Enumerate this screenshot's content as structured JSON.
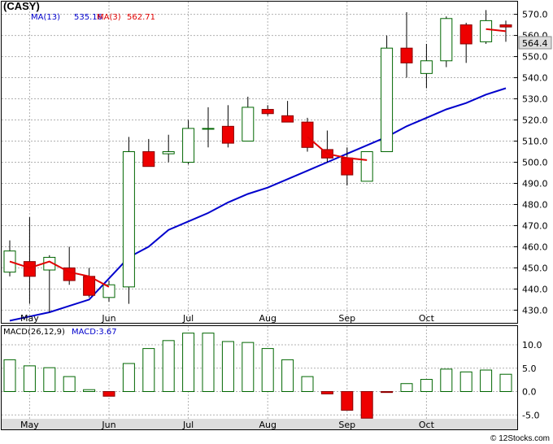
{
  "chart_data": {
    "type": "candlestick",
    "ticker": "(CASY)",
    "legend": [
      {
        "label": "MA(13)",
        "value": "535.16",
        "color": "#0000cc"
      },
      {
        "label": "MA(3)",
        "value": "562.71",
        "color": "#e00000"
      }
    ],
    "last_price_label": "564.4",
    "price_axis": {
      "min": 424,
      "max": 576,
      "ticks": [
        430,
        440,
        450,
        460,
        470,
        480,
        490,
        500,
        510,
        520,
        530,
        540,
        550,
        560,
        570
      ]
    },
    "month_labels": [
      "May",
      "Jun",
      "Jul",
      "Aug",
      "Sep",
      "Oct"
    ],
    "month_positions": [
      1.0,
      5.0,
      9.0,
      13.0,
      17.0,
      21.0
    ],
    "candles": [
      {
        "o": 448,
        "h": 463,
        "l": 446,
        "c": 458
      },
      {
        "o": 453,
        "h": 474,
        "l": 433,
        "c": 446
      },
      {
        "o": 449,
        "h": 456,
        "l": 429,
        "c": 455
      },
      {
        "o": 450,
        "h": 460,
        "l": 442,
        "c": 444
      },
      {
        "o": 446,
        "h": 450,
        "l": 436,
        "c": 437
      },
      {
        "o": 436,
        "h": 444,
        "l": 434,
        "c": 442
      },
      {
        "o": 441,
        "h": 512,
        "l": 433,
        "c": 505
      },
      {
        "o": 505,
        "h": 511,
        "l": 498,
        "c": 498
      },
      {
        "o": 504,
        "h": 513,
        "l": 500,
        "c": 505
      },
      {
        "o": 500,
        "h": 520,
        "l": 499,
        "c": 516
      },
      {
        "o": 516,
        "h": 526,
        "l": 507,
        "c": 516
      },
      {
        "o": 517,
        "h": 527,
        "l": 507,
        "c": 509
      },
      {
        "o": 510,
        "h": 531,
        "l": 510,
        "c": 526
      },
      {
        "o": 525,
        "h": 527,
        "l": 522,
        "c": 523
      },
      {
        "o": 522,
        "h": 529,
        "l": 519,
        "c": 519
      },
      {
        "o": 519,
        "h": 521,
        "l": 505,
        "c": 507
      },
      {
        "o": 506,
        "h": 515,
        "l": 500,
        "c": 502
      },
      {
        "o": 502,
        "h": 507,
        "l": 489,
        "c": 494
      },
      {
        "o": 491,
        "h": 505,
        "l": 491,
        "c": 505
      },
      {
        "o": 505,
        "h": 560,
        "l": 505,
        "c": 554
      },
      {
        "o": 554,
        "h": 571,
        "l": 540,
        "c": 547
      },
      {
        "o": 542,
        "h": 556,
        "l": 535,
        "c": 548
      },
      {
        "o": 548,
        "h": 569,
        "l": 545,
        "c": 568
      },
      {
        "o": 565,
        "h": 566,
        "l": 547,
        "c": 556
      },
      {
        "o": 557,
        "h": 572,
        "l": 556,
        "c": 567
      },
      {
        "o": 565,
        "h": 567,
        "l": 557,
        "c": 564
      }
    ],
    "ma13": [
      425,
      427,
      429,
      432,
      435,
      445,
      455,
      460,
      468,
      472,
      476,
      481,
      485,
      488,
      492,
      496,
      500,
      504,
      508,
      512,
      517,
      521,
      525,
      528,
      532,
      535
    ],
    "ma3_segments": [
      {
        "start": 0,
        "values": [
          453,
          450,
          453,
          448,
          446,
          441
        ]
      },
      {
        "start": 15,
        "values": [
          512,
          504,
          502,
          501
        ]
      },
      {
        "start": 24,
        "values": [
          563,
          562
        ]
      }
    ],
    "macd_label": "MACD(26,12,9)",
    "macd_value_label": "MACD:3.67",
    "macd_axis": {
      "min": -6.0,
      "max": 14.0,
      "ticks": [
        10.0,
        5.0,
        0.0,
        -5.0
      ]
    },
    "macd_tick_labels": [
      "10.0",
      "5.0",
      "0.0",
      "-5.0"
    ],
    "macd_values": [
      6.8,
      5.5,
      5.1,
      3.2,
      0.4,
      -1.0,
      6.0,
      9.2,
      10.9,
      12.5,
      12.5,
      10.7,
      10.5,
      9.2,
      6.8,
      3.2,
      -0.5,
      -4.0,
      -5.7,
      -0.2,
      1.7,
      2.6,
      4.8,
      4.2,
      4.6,
      3.7
    ],
    "watermark": "© 12Stocks.com"
  }
}
